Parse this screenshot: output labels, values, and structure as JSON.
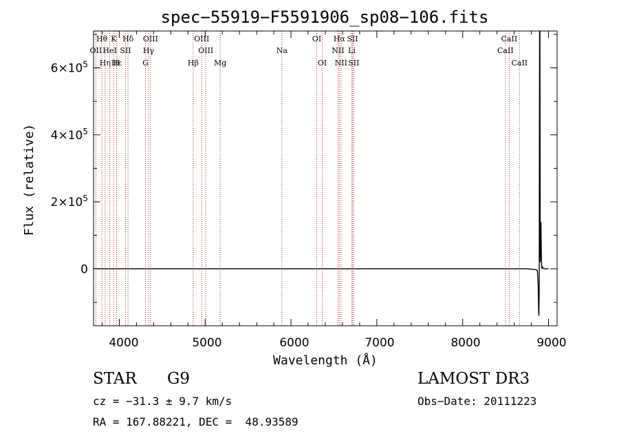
{
  "chart_data": {
    "type": "line",
    "title": "spec−55919−F5591906_sp08−106.fits",
    "xlabel": "Wavelength (Å)",
    "ylabel": "Flux (relative)",
    "xlim": [
      3700,
      9100
    ],
    "ylim": [
      -170000,
      710000
    ],
    "x_ticks": [
      {
        "value": 4000,
        "label": "4000"
      },
      {
        "value": 5000,
        "label": "5000"
      },
      {
        "value": 6000,
        "label": "6000"
      },
      {
        "value": 7000,
        "label": "7000"
      },
      {
        "value": 8000,
        "label": "8000"
      },
      {
        "value": 9000,
        "label": "9000"
      }
    ],
    "y_ticks": [
      {
        "value": 0,
        "label": "0",
        "mantissa": "0",
        "exponent": ""
      },
      {
        "value": 200000,
        "label": "2×10^5",
        "mantissa": "2×10",
        "exponent": "5"
      },
      {
        "value": 400000,
        "label": "4×10^5",
        "mantissa": "4×10",
        "exponent": "5"
      },
      {
        "value": 600000,
        "label": "6×10^5",
        "mantissa": "6×10",
        "exponent": "5"
      }
    ],
    "series": [
      {
        "name": "flux",
        "x": [
          3700,
          4500,
          5500,
          6500,
          7500,
          8500,
          8750,
          8840,
          8860,
          8870,
          8880,
          8885,
          8888,
          8892,
          8896,
          8900,
          8904,
          8908,
          8912,
          8916,
          8920,
          8924,
          8928,
          8935,
          8950,
          8960,
          9000
        ],
        "y": [
          0,
          0,
          0,
          0,
          0,
          0,
          0,
          -2000,
          -3000,
          -5000,
          -50000,
          -130000,
          -140000,
          -60000,
          710000,
          710000,
          20000,
          80000,
          140000,
          60000,
          10000,
          0,
          8000,
          2000,
          0,
          0,
          0
        ]
      }
    ],
    "lines": [
      {
        "label": "Hθ",
        "x": 3797,
        "row": 0
      },
      {
        "label": "OII",
        "x": 3727,
        "row": 1
      },
      {
        "label": "Hη",
        "x": 3835,
        "row": 2
      },
      {
        "label": "K",
        "x": 3934,
        "row": 0
      },
      {
        "label": "HeI",
        "x": 3889,
        "row": 1
      },
      {
        "label": "Hε",
        "x": 3970,
        "row": 2
      },
      {
        "label": "SII",
        "x": 4072,
        "row": 1
      },
      {
        "label": "H",
        "x": 3968,
        "row": 2
      },
      {
        "label": "Hδ",
        "x": 4102,
        "row": 0
      },
      {
        "label": "OIII",
        "x": 4364,
        "row": 0
      },
      {
        "label": "Hγ",
        "x": 4341,
        "row": 1
      },
      {
        "label": "G",
        "x": 4305,
        "row": 2
      },
      {
        "label": "OIII",
        "x": 4960,
        "row": 0
      },
      {
        "label": "OIII",
        "x": 5008,
        "row": 1
      },
      {
        "label": "Hβ",
        "x": 4861,
        "row": 2
      },
      {
        "label": "Mg",
        "x": 5175,
        "row": 2
      },
      {
        "label": "Na",
        "x": 5894,
        "row": 1
      },
      {
        "label": "OI",
        "x": 6300,
        "row": 0
      },
      {
        "label": "OI",
        "x": 6364,
        "row": 2
      },
      {
        "label": "Hα",
        "x": 6563,
        "row": 0
      },
      {
        "label": "SII",
        "x": 6716,
        "row": 0
      },
      {
        "label": "NII",
        "x": 6548,
        "row": 1
      },
      {
        "label": "Li",
        "x": 6708,
        "row": 1
      },
      {
        "label": "NII",
        "x": 6583,
        "row": 2
      },
      {
        "label": "SII",
        "x": 6731,
        "row": 2
      },
      {
        "label": "CaII",
        "x": 8542,
        "row": 0
      },
      {
        "label": "CaII",
        "x": 8498,
        "row": 1
      },
      {
        "label": "CaII",
        "x": 8662,
        "row": 2
      }
    ],
    "line_color": "#b22222"
  },
  "info": {
    "object_class": "STAR",
    "subclass": "G9",
    "cz": "cz = −31.3 ± 9.7 km/s",
    "radec": "RA = 167.88221, DEC =  48.93589",
    "survey": "LAMOST DR3",
    "obs_date": "Obs−Date: 20111223"
  }
}
